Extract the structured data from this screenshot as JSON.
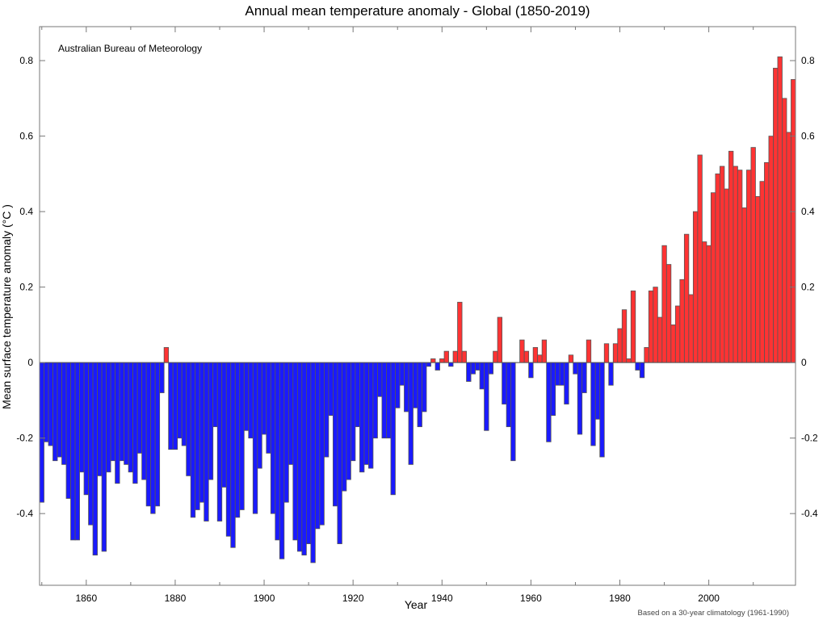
{
  "chart_data": {
    "type": "bar",
    "title": "Annual mean temperature anomaly - Global (1850-2019)",
    "xlabel": "Year",
    "ylabel": "Mean surface temperature anomaly (°C )",
    "source_label": "Australian Bureau of Meteorology",
    "footnote": "Based on a 30-year climatology (1961-1990)",
    "x_start": 1850,
    "x_end": 2019,
    "xlim": [
      1849.5,
      2019.5
    ],
    "ylim": [
      -0.59,
      0.89
    ],
    "x_ticks": [
      "1860",
      "1880",
      "1900",
      "1920",
      "1940",
      "1960",
      "1980",
      "2000"
    ],
    "y_ticks": [
      "0.8",
      "0.6",
      "0.4",
      "0.2",
      "0",
      "-0.2",
      "-0.4"
    ],
    "grid": false,
    "colors": {
      "positive": "#ff3333",
      "negative": "#1a1aff",
      "edge": "#555555"
    },
    "values": [
      -0.37,
      -0.21,
      -0.22,
      -0.26,
      -0.25,
      -0.27,
      -0.36,
      -0.47,
      -0.47,
      -0.29,
      -0.35,
      -0.43,
      -0.51,
      -0.3,
      -0.5,
      -0.29,
      -0.26,
      -0.32,
      -0.26,
      -0.27,
      -0.29,
      -0.32,
      -0.24,
      -0.31,
      -0.38,
      -0.4,
      -0.38,
      -0.08,
      0.04,
      -0.23,
      -0.23,
      -0.2,
      -0.22,
      -0.3,
      -0.41,
      -0.39,
      -0.37,
      -0.42,
      -0.31,
      -0.17,
      -0.42,
      -0.33,
      -0.46,
      -0.49,
      -0.41,
      -0.39,
      -0.18,
      -0.2,
      -0.4,
      -0.28,
      -0.19,
      -0.24,
      -0.4,
      -0.47,
      -0.52,
      -0.37,
      -0.27,
      -0.47,
      -0.5,
      -0.51,
      -0.48,
      -0.53,
      -0.44,
      -0.43,
      -0.25,
      -0.14,
      -0.38,
      -0.48,
      -0.34,
      -0.31,
      -0.26,
      -0.17,
      -0.29,
      -0.27,
      -0.28,
      -0.2,
      -0.09,
      -0.2,
      -0.2,
      -0.35,
      -0.12,
      -0.06,
      -0.13,
      -0.27,
      -0.12,
      -0.17,
      -0.13,
      -0.01,
      0.01,
      -0.02,
      0.01,
      0.03,
      -0.01,
      0.03,
      0.16,
      0.03,
      -0.05,
      -0.03,
      -0.02,
      -0.07,
      -0.18,
      -0.03,
      0.03,
      0.12,
      -0.11,
      -0.17,
      -0.26,
      0.0,
      0.06,
      0.03,
      -0.04,
      0.04,
      0.02,
      0.06,
      -0.21,
      -0.14,
      -0.06,
      -0.06,
      -0.11,
      0.02,
      -0.03,
      -0.19,
      -0.08,
      0.06,
      -0.22,
      -0.15,
      -0.25,
      0.05,
      -0.06,
      0.05,
      0.09,
      0.14,
      0.01,
      0.19,
      -0.02,
      -0.04,
      0.04,
      0.19,
      0.2,
      0.12,
      0.31,
      0.26,
      0.1,
      0.15,
      0.22,
      0.34,
      0.18,
      0.4,
      0.55,
      0.32,
      0.31,
      0.45,
      0.5,
      0.52,
      0.46,
      0.56,
      0.52,
      0.51,
      0.41,
      0.51,
      0.57,
      0.44,
      0.48,
      0.53,
      0.6,
      0.78,
      0.81,
      0.7,
      0.61,
      0.75
    ]
  }
}
